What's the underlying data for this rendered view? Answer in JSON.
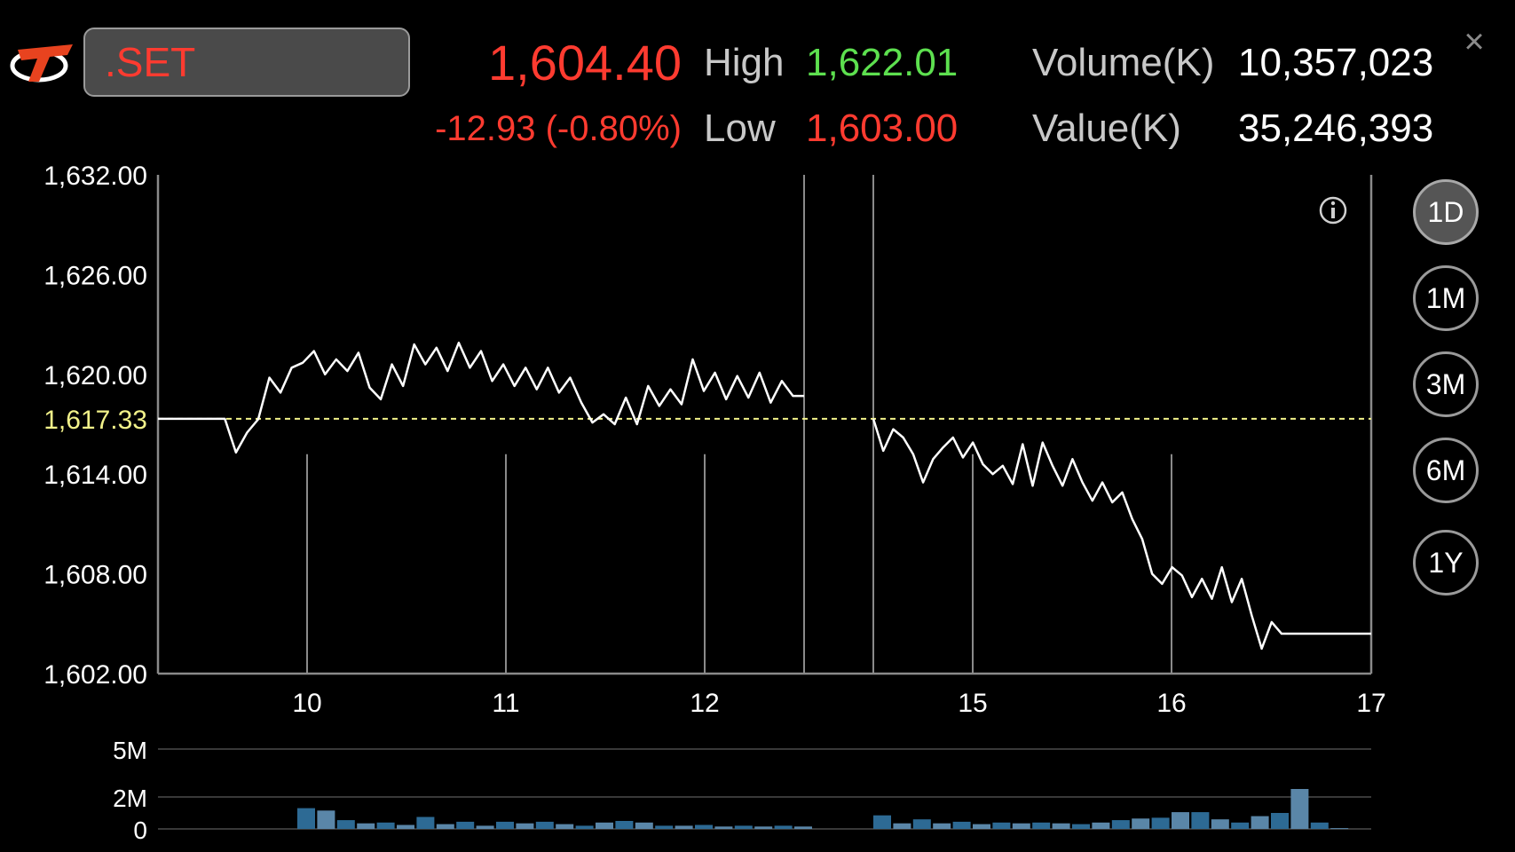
{
  "header": {
    "symbol": ".SET",
    "last_price": "1,604.40",
    "change": "-12.93 (-0.80%)",
    "high_label": "High",
    "high_value": "1,622.01",
    "low_label": "Low",
    "low_value": "1,603.00",
    "volume_label": "Volume(K)",
    "volume_value": "10,357,023",
    "value_label": "Value(K)",
    "value_value": "35,246,393"
  },
  "periods": [
    {
      "label": "1D",
      "active": true
    },
    {
      "label": "1M",
      "active": false
    },
    {
      "label": "3M",
      "active": false
    },
    {
      "label": "6M",
      "active": false
    },
    {
      "label": "1Y",
      "active": false
    }
  ],
  "icons": {
    "logo": "brand-t-logo",
    "close": "close-icon",
    "info": "info-icon"
  },
  "colors": {
    "price_line": "#ffffff",
    "reference_line": "#f2f28a",
    "volume_bar_primary": "#2d6a94",
    "volume_bar_secondary": "#5a86a8",
    "negative": "#ff3b30",
    "positive": "#5de04f"
  },
  "chart_data": [
    {
      "type": "line",
      "reference_value": 1617.33,
      "reference_label": "1,617.33",
      "ylim": [
        1602,
        1632
      ],
      "y_ticks": [
        1632,
        1626,
        1620,
        1614,
        1608,
        1602
      ],
      "y_tick_labels": [
        "1,632.00",
        "1,626.00",
        "1,620.00",
        "1,614.00",
        "1,608.00",
        "1,602.00"
      ],
      "x_ticks": [
        "10",
        "11",
        "12",
        "15",
        "16",
        "17"
      ],
      "series": [
        {
          "values": [
            1617.33,
            1617.33,
            1617.33,
            1617.33,
            1617.33,
            1617.33,
            1617.33,
            1615.3,
            1616.5,
            1617.3,
            1619.8,
            1618.9,
            1620.4,
            1620.7,
            1621.4,
            1620.0,
            1620.9,
            1620.2,
            1621.3,
            1619.2,
            1618.5,
            1620.6,
            1619.3,
            1621.8,
            1620.6,
            1621.6,
            1620.2,
            1621.9,
            1620.4,
            1621.4,
            1619.6,
            1620.6,
            1619.3,
            1620.4,
            1619.1,
            1620.4,
            1618.9,
            1619.8,
            1618.3,
            1617.1,
            1617.6,
            1617.0,
            1618.6,
            1617.0,
            1619.3,
            1618.1,
            1619.1,
            1618.2,
            1620.9,
            1619.0,
            1620.1,
            1618.5,
            1619.9,
            1618.6,
            1620.1,
            1618.3,
            1619.6,
            1618.7,
            1618.7
          ]
        },
        {
          "values": [
            1617.33,
            1615.4,
            1616.7,
            1616.2,
            1615.2,
            1613.5,
            1614.9,
            1615.6,
            1616.2,
            1615.0,
            1615.9,
            1614.6,
            1614.0,
            1614.5,
            1613.4,
            1615.8,
            1613.3,
            1615.9,
            1614.5,
            1613.3,
            1614.9,
            1613.5,
            1612.4,
            1613.5,
            1612.3,
            1612.9,
            1611.3,
            1610.1,
            1608.0,
            1607.4,
            1608.4,
            1607.9,
            1606.6,
            1607.7,
            1606.5,
            1608.4,
            1606.3,
            1607.7,
            1605.5,
            1603.5,
            1605.1,
            1604.4,
            1604.4,
            1604.4,
            1604.4,
            1604.4,
            1604.4,
            1604.4,
            1604.4,
            1604.4,
            1604.4
          ]
        }
      ]
    },
    {
      "type": "bar",
      "ylim": [
        0,
        5
      ],
      "y_ticks": [
        0,
        2,
        5
      ],
      "y_tick_labels": [
        "0",
        "2M",
        "5M"
      ],
      "series": [
        {
          "values": [
            1.3,
            1.15,
            0.55,
            0.35,
            0.4,
            0.25,
            0.75,
            0.3,
            0.45,
            0.2,
            0.45,
            0.35,
            0.45,
            0.3,
            0.2,
            0.4,
            0.5,
            0.4,
            0.2,
            0.2,
            0.25,
            0.15,
            0.2,
            0.15,
            0.2,
            0.15
          ]
        },
        {
          "values": [
            0.85,
            0.35,
            0.6,
            0.35,
            0.45,
            0.3,
            0.4,
            0.35,
            0.4,
            0.35,
            0.3,
            0.4,
            0.55,
            0.65,
            0.7,
            1.05,
            1.05,
            0.6,
            0.4,
            0.8,
            1.0,
            2.5,
            0.4,
            0.05
          ]
        }
      ]
    }
  ]
}
